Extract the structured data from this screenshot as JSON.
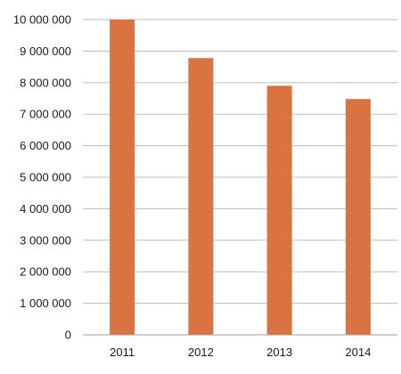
{
  "chart_data": {
    "type": "bar",
    "title": "",
    "xlabel": "",
    "ylabel": "",
    "categories": [
      "2011",
      "2012",
      "2013",
      "2014"
    ],
    "values": [
      10000000,
      8780000,
      7900000,
      7480000
    ],
    "ylim": [
      0,
      10000000
    ],
    "y_ticks": [
      0,
      1000000,
      2000000,
      3000000,
      4000000,
      5000000,
      6000000,
      7000000,
      8000000,
      9000000,
      10000000
    ],
    "y_tick_labels": [
      "0",
      "1 000 000",
      "2 000 000",
      "3 000 000",
      "4 000 000",
      "5 000 000",
      "6 000 000",
      "7 000 000",
      "8 000 000",
      "9 000 000",
      "10 000 000"
    ],
    "grid": true,
    "legend": "none",
    "bar_color": "#d97442"
  }
}
